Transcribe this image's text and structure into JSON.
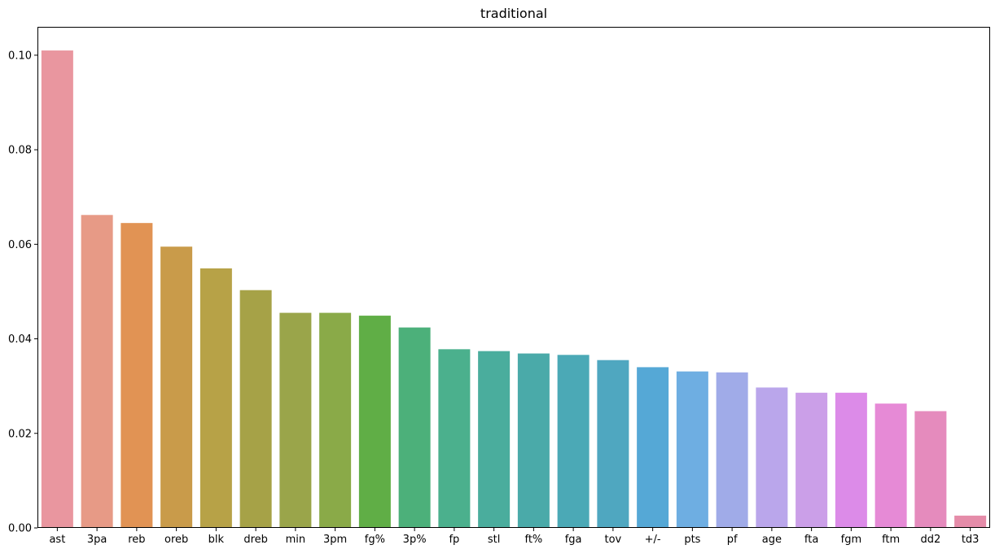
{
  "chart_data": {
    "type": "bar",
    "title": "traditional",
    "xlabel": "",
    "ylabel": "",
    "ylim": [
      0,
      0.106
    ],
    "yticks": [
      0.0,
      0.02,
      0.04,
      0.06,
      0.08,
      0.1
    ],
    "ytick_labels": [
      "0.00",
      "0.02",
      "0.04",
      "0.06",
      "0.08",
      "0.10"
    ],
    "grid": false,
    "categories": [
      "ast",
      "3pa",
      "reb",
      "oreb",
      "blk",
      "dreb",
      "min",
      "3pm",
      "fg%",
      "3p%",
      "fp",
      "stl",
      "ft%",
      "fga",
      "tov",
      "+/-",
      "pts",
      "pf",
      "age",
      "fta",
      "fgm",
      "ftm",
      "dd2",
      "td3"
    ],
    "values": [
      0.101,
      0.0662,
      0.0645,
      0.0595,
      0.0549,
      0.0503,
      0.0455,
      0.0455,
      0.0449,
      0.0424,
      0.0378,
      0.0374,
      0.0369,
      0.0366,
      0.0355,
      0.034,
      0.0331,
      0.0329,
      0.0297,
      0.0286,
      0.0286,
      0.0263,
      0.0247,
      0.0026
    ],
    "colors": [
      "#e9969f",
      "#e79a86",
      "#e19354",
      "#c99b4a",
      "#b7a247",
      "#a6a247",
      "#9aa54a",
      "#8aaa48",
      "#60ae46",
      "#4cb07a",
      "#4bb08d",
      "#4aad9d",
      "#4aaaa9",
      "#4ba9b6",
      "#4fa7c0",
      "#55a8d6",
      "#6eaee2",
      "#a0abe8",
      "#baa6eb",
      "#cb9fe8",
      "#dc8be8",
      "#e68ad6",
      "#e58bbd",
      "#e58ca9"
    ]
  }
}
